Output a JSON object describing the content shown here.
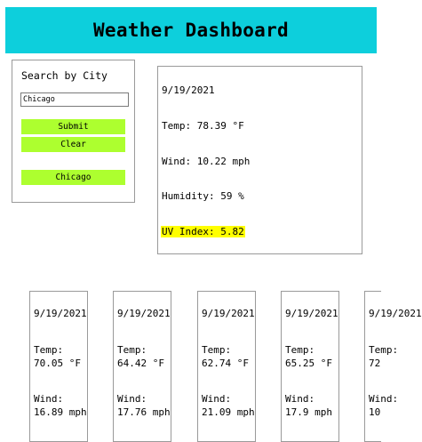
{
  "header": {
    "title": "Weather Dashboard"
  },
  "search": {
    "title": "Search by City",
    "input_value": "Chicago",
    "submit_label": "Submit",
    "clear_label": "Clear",
    "history": [
      "Chicago"
    ]
  },
  "current": {
    "date": "9/19/2021",
    "temp": "Temp: 78.39 °F",
    "wind": "Wind: 10.22 mph",
    "humidity": "Humidity: 59 %",
    "uv": "UV Index: 5.82",
    "uv_highlight_color": "#ffff00"
  },
  "forecast": [
    {
      "date": "9/19/2021",
      "temp_label": "Temp:",
      "temp": "70.05 °F",
      "wind_label": "Wind:",
      "wind": "16.89 mph"
    },
    {
      "date": "9/19/2021",
      "temp_label": "Temp:",
      "temp": "64.42 °F",
      "wind_label": "Wind:",
      "wind": "17.76 mph"
    },
    {
      "date": "9/19/2021",
      "temp_label": "Temp:",
      "temp": "62.74 °F",
      "wind_label": "Wind:",
      "wind": "21.09 mph"
    },
    {
      "date": "9/19/2021",
      "temp_label": "Temp:",
      "temp": "65.25 °F",
      "wind_label": "Wind:",
      "wind": "17.9 mph"
    },
    {
      "date": "9/19/2021",
      "temp_label": "Temp:",
      "temp": "72",
      "wind_label": "Wind:",
      "wind": "10"
    }
  ],
  "colors": {
    "header_bg": "#0dcfdc",
    "button_bg": "#adff2f",
    "uv_highlight": "#ffff00"
  }
}
